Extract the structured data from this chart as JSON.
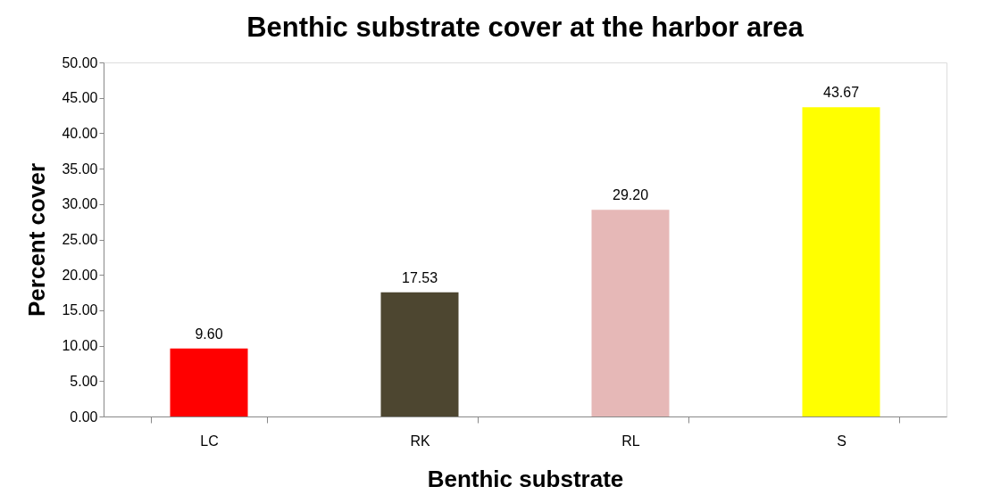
{
  "chart_data": {
    "type": "bar",
    "title": "Benthic substrate cover at the harbor area",
    "xlabel": "Benthic substrate",
    "ylabel": "Percent cover",
    "categories": [
      "LC",
      "RK",
      "RL",
      "S"
    ],
    "values": [
      9.6,
      17.53,
      29.2,
      43.67
    ],
    "colors": [
      "#ff0000",
      "#4d4630",
      "#e6b8b7",
      "#ffff00"
    ],
    "value_labels": [
      "9.60",
      "17.53",
      "29.20",
      "43.67"
    ],
    "ylim": [
      0,
      50
    ],
    "yticks": [
      {
        "value": 0,
        "label": "0.00"
      },
      {
        "value": 5,
        "label": "5.00"
      },
      {
        "value": 10,
        "label": "10.00"
      },
      {
        "value": 15,
        "label": "15.00"
      },
      {
        "value": 20,
        "label": "20.00"
      },
      {
        "value": 25,
        "label": "25.00"
      },
      {
        "value": 30,
        "label": "30.00"
      },
      {
        "value": 35,
        "label": "35.00"
      },
      {
        "value": 40,
        "label": "40.00"
      },
      {
        "value": 45,
        "label": "45.00"
      },
      {
        "value": 50,
        "label": "50.00"
      }
    ],
    "grid": false,
    "legend": false
  }
}
